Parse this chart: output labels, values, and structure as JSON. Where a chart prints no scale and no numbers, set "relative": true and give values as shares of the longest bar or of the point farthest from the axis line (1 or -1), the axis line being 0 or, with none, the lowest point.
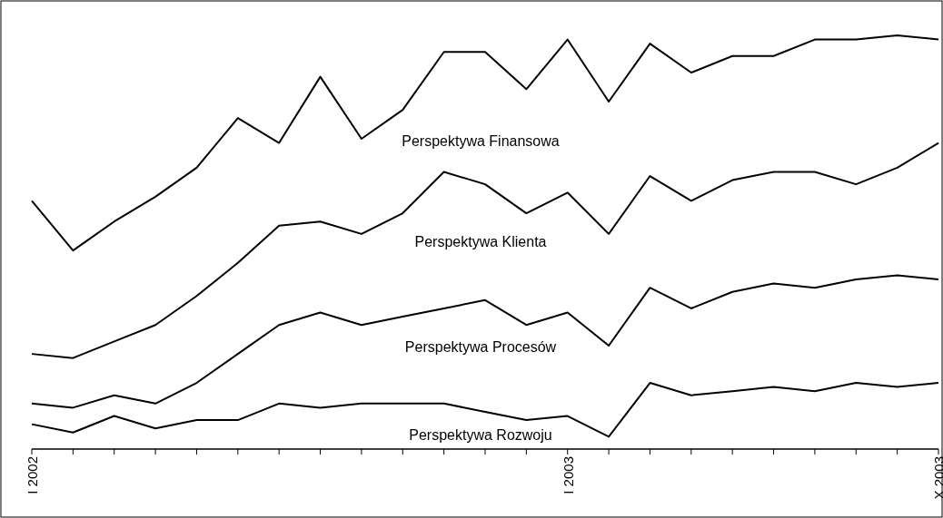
{
  "chart_data": {
    "type": "line",
    "relative": true,
    "categories": [
      "I 2002",
      null,
      null,
      null,
      null,
      null,
      null,
      null,
      null,
      null,
      null,
      null,
      null,
      "I 2003",
      null,
      null,
      null,
      null,
      null,
      null,
      null,
      null,
      "X 2003"
    ],
    "series": [
      {
        "name": "Perspektywa Finansowa",
        "color": "#000000",
        "values": [
          0.6,
          0.48,
          0.55,
          0.61,
          0.68,
          0.8,
          0.74,
          0.9,
          0.75,
          0.82,
          0.96,
          0.96,
          0.87,
          0.99,
          0.84,
          0.98,
          0.91,
          0.95,
          0.95,
          0.99,
          0.99,
          1,
          0.99
        ]
      },
      {
        "name": "Perspektywa Klienta",
        "color": "#000000",
        "values": [
          0.23,
          0.22,
          0.26,
          0.3,
          0.37,
          0.45,
          0.54,
          0.55,
          0.52,
          0.57,
          0.67,
          0.64,
          0.57,
          0.62,
          0.52,
          0.66,
          0.6,
          0.65,
          0.67,
          0.67,
          0.64,
          0.68,
          0.74
        ]
      },
      {
        "name": "Perspektywa Procesów",
        "color": "#000000",
        "values": [
          0.11,
          0.1,
          0.13,
          0.11,
          0.16,
          0.23,
          0.3,
          0.33,
          0.3,
          0.32,
          0.34,
          0.36,
          0.3,
          0.33,
          0.25,
          0.39,
          0.34,
          0.38,
          0.4,
          0.39,
          0.41,
          0.42,
          0.41
        ]
      },
      {
        "name": "Perspektywa Rozwoju",
        "color": "#000000",
        "values": [
          0.06,
          0.04,
          0.08,
          0.05,
          0.07,
          0.07,
          0.11,
          0.1,
          0.11,
          0.11,
          0.11,
          0.09,
          0.07,
          0.08,
          0.03,
          0.16,
          0.13,
          0.14,
          0.15,
          0.14,
          0.16,
          0.15,
          0.16
        ]
      }
    ]
  }
}
